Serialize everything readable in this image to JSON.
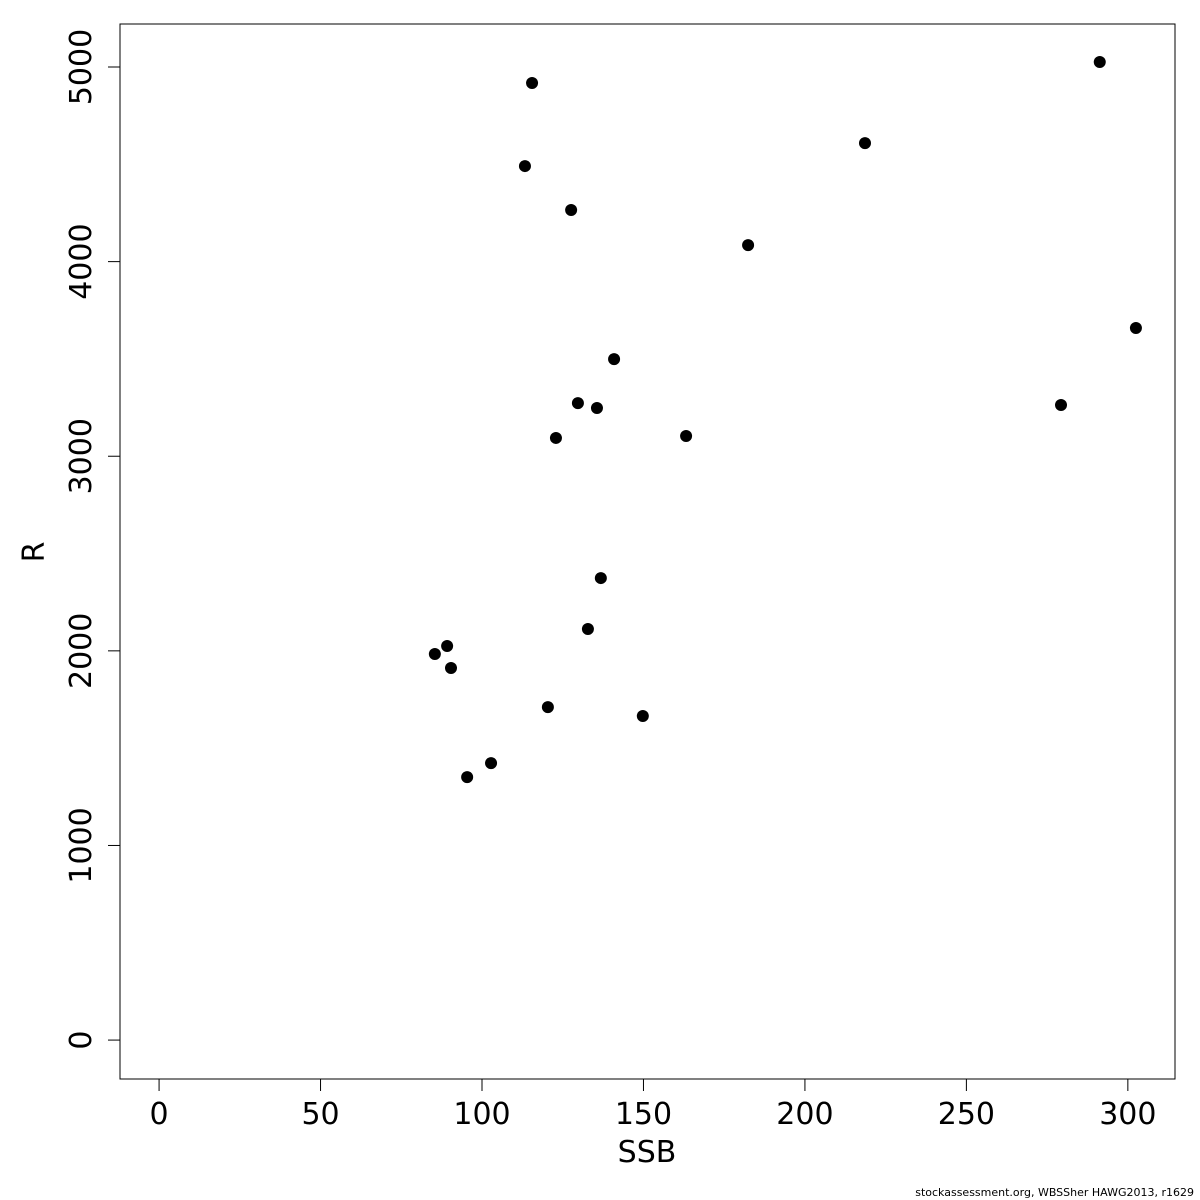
{
  "chart_data": {
    "type": "scatter",
    "x_label": "SSB",
    "y_label": "R",
    "footer": "stockassessment.org, WBSSher HAWG2013, r1629",
    "color": "#000000",
    "x": [
      115.5,
      113.3,
      127.6,
      182.4,
      218.6,
      291.3,
      302.5,
      279.3,
      140.9,
      129.7,
      135.6,
      122.9,
      163.2,
      136.8,
      132.8,
      89.2,
      85.4,
      90.4,
      120.4,
      149.8,
      102.8,
      95.4
    ],
    "values": [
      4918,
      4491,
      4265,
      4085,
      4609,
      5026,
      3659,
      3263,
      3499,
      3273,
      3248,
      3094,
      3104,
      2374,
      2112,
      2025,
      1984,
      1912,
      1711,
      1665,
      1423,
      1351
    ],
    "xlim": [
      -12.1,
      314.6
    ],
    "ylim": [
      -200,
      5221
    ],
    "xticks": [
      0,
      50,
      100,
      150,
      200,
      250,
      300
    ],
    "yticks": [
      0,
      1000,
      2000,
      3000,
      4000,
      5000
    ]
  }
}
